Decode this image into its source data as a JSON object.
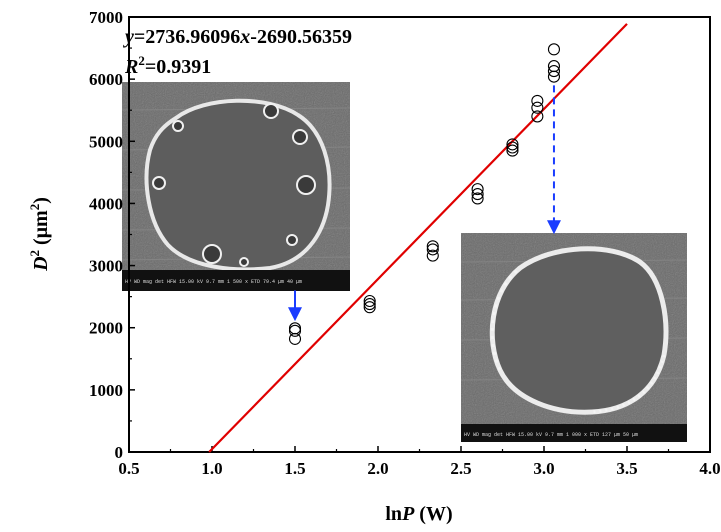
{
  "chart_data": {
    "type": "scatter",
    "xlabel": {
      "prefix": "ln",
      "var": "P",
      "unit": " (W)"
    },
    "ylabel": {
      "var": "D",
      "sup": "2",
      "unit": " (μm",
      "unit_sup": "2",
      "close": ")"
    },
    "xlim": [
      0.5,
      4.0
    ],
    "ylim": [
      0,
      7000
    ],
    "x_ticks": [
      "0.5",
      "1.0",
      "1.5",
      "2.0",
      "2.5",
      "3.0",
      "3.5",
      "4.0"
    ],
    "x_tick_values": [
      0.5,
      1.0,
      1.5,
      2.0,
      2.5,
      3.0,
      3.5,
      4.0
    ],
    "y_ticks": [
      "0",
      "1000",
      "2000",
      "3000",
      "4000",
      "5000",
      "6000",
      "7000"
    ],
    "y_tick_values": [
      0,
      1000,
      2000,
      3000,
      4000,
      5000,
      6000,
      7000
    ],
    "grid": false,
    "series": [
      {
        "marker": "open-circle",
        "points": [
          [
            1.5,
            1820
          ],
          [
            1.5,
            1950
          ],
          [
            1.5,
            1990
          ],
          [
            1.95,
            2330
          ],
          [
            1.95,
            2380
          ],
          [
            1.95,
            2430
          ],
          [
            2.33,
            3160
          ],
          [
            2.33,
            3260
          ],
          [
            2.33,
            3310
          ],
          [
            2.6,
            4080
          ],
          [
            2.6,
            4150
          ],
          [
            2.6,
            4230
          ],
          [
            2.81,
            4850
          ],
          [
            2.81,
            4900
          ],
          [
            2.81,
            4950
          ],
          [
            2.96,
            5400
          ],
          [
            2.96,
            5540
          ],
          [
            2.96,
            5650
          ],
          [
            3.06,
            6040
          ],
          [
            3.06,
            6130
          ],
          [
            3.06,
            6210
          ],
          [
            3.06,
            6480
          ]
        ]
      }
    ],
    "fit": {
      "slope": 2736.96096,
      "intercept": -2690.56359,
      "x_range": [
        0.983,
        3.5
      ],
      "color": "#e00000",
      "equation_parts": {
        "y": "y",
        "eq": "=2736.96096",
        "x": "x",
        "rest": "-2690.56359"
      },
      "r2_parts": {
        "R": "R",
        "sup": "2",
        "rest": "=0.9391"
      }
    },
    "annotations": [
      {
        "from": [
          1.5,
          2600
        ],
        "to": [
          1.5,
          2150
        ],
        "style": "solid-arrow",
        "color": "#1a3cff"
      },
      {
        "from": [
          3.06,
          5900
        ],
        "to": [
          3.06,
          3550
        ],
        "style": "dashed-arrow",
        "color": "#1a3cff"
      }
    ],
    "insets": [
      {
        "name": "sem-image-low-power",
        "footer": "HV  WD  mag  det  HFW   15.00 kV 9.7 mm 1 500 x ETD 79.4 μm      40 μm"
      },
      {
        "name": "sem-image-high-power",
        "footer": "HV  WD  mag  det  HFW   15.00 kV 9.7 mm 1 000 x ETD 127 μm      50 μm"
      }
    ]
  }
}
